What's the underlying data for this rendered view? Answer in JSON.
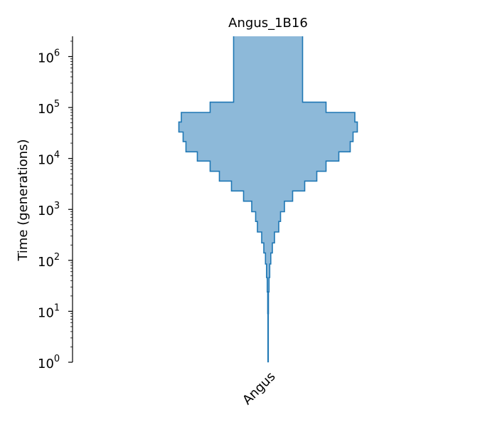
{
  "chart_data": {
    "type": "area",
    "subtype": "demographic-history-violin",
    "title": "Angus_1B16",
    "ylabel": "Time (generations)",
    "xlabel": "",
    "categories": [
      "Angus"
    ],
    "y_scale": "log",
    "ylim": [
      1,
      2500000
    ],
    "y_ticks": [
      {
        "value": 1,
        "base": "10",
        "exp": "0"
      },
      {
        "value": 10,
        "base": "10",
        "exp": "1"
      },
      {
        "value": 100,
        "base": "10",
        "exp": "2"
      },
      {
        "value": 1000,
        "base": "10",
        "exp": "3"
      },
      {
        "value": 10000,
        "base": "10",
        "exp": "4"
      },
      {
        "value": 100000,
        "base": "10",
        "exp": "5"
      },
      {
        "value": 1000000,
        "base": "10",
        "exp": "6"
      }
    ],
    "fill_color": "#8db9d9",
    "line_color": "#1f77b4",
    "series": [
      {
        "category": "Angus",
        "steps": [
          {
            "t_start": 1,
            "t_end": 9,
            "width": 0.5
          },
          {
            "t_start": 9,
            "t_end": 24,
            "width": 1
          },
          {
            "t_start": 24,
            "t_end": 46,
            "width": 2.5
          },
          {
            "t_start": 46,
            "t_end": 85,
            "width": 4.5
          },
          {
            "t_start": 85,
            "t_end": 140,
            "width": 7.5
          },
          {
            "t_start": 140,
            "t_end": 220,
            "width": 12
          },
          {
            "t_start": 220,
            "t_end": 360,
            "width": 18
          },
          {
            "t_start": 360,
            "t_end": 580,
            "width": 30
          },
          {
            "t_start": 580,
            "t_end": 900,
            "width": 35
          },
          {
            "t_start": 900,
            "t_end": 1450,
            "width": 46
          },
          {
            "t_start": 1450,
            "t_end": 2300,
            "width": 69
          },
          {
            "t_start": 2300,
            "t_end": 3600,
            "width": 103
          },
          {
            "t_start": 3600,
            "t_end": 5600,
            "width": 137
          },
          {
            "t_start": 5600,
            "t_end": 8900,
            "width": 163
          },
          {
            "t_start": 8900,
            "t_end": 13500,
            "width": 199
          },
          {
            "t_start": 13500,
            "t_end": 21500,
            "width": 231
          },
          {
            "t_start": 21500,
            "t_end": 33000,
            "width": 239
          },
          {
            "t_start": 33000,
            "t_end": 52000,
            "width": 251
          },
          {
            "t_start": 52000,
            "t_end": 80000,
            "width": 244
          },
          {
            "t_start": 80000,
            "t_end": 127000,
            "width": 163
          },
          {
            "t_start": 127000,
            "t_end": 2500000,
            "width": 97
          }
        ]
      }
    ],
    "grid": false,
    "legend": "none"
  }
}
